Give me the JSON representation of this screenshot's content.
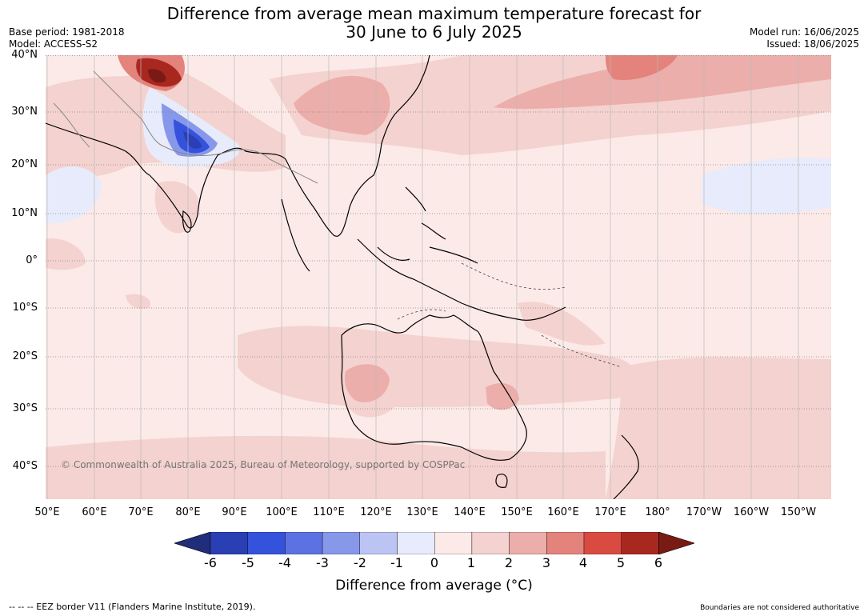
{
  "title": {
    "line1": "Difference from average mean maximum temperature forecast for",
    "line2": "30 June to 6 July 2025"
  },
  "meta": {
    "base_period": "Base period: 1981-2018",
    "model": "Model: ACCESS-S2",
    "model_run": "Model run: 16/06/2025",
    "issued": "Issued: 18/06/2025"
  },
  "map": {
    "lat_labels": [
      "40°N",
      "30°N",
      "20°N",
      "10°N",
      "0°",
      "10°S",
      "20°S",
      "30°S",
      "40°S"
    ],
    "lon_labels": [
      "50°E",
      "60°E",
      "70°E",
      "80°E",
      "90°E",
      "100°E",
      "110°E",
      "120°E",
      "130°E",
      "140°E",
      "150°E",
      "160°E",
      "170°E",
      "180°",
      "170°W",
      "160°W",
      "150°W"
    ],
    "copyright": "© Commonwealth of Australia 2025, Bureau of Meteorology, supported by COSPPac"
  },
  "colorbar": {
    "ticks": [
      "-6",
      "-5",
      "-4",
      "-3",
      "-2",
      "-1",
      "0",
      "1",
      "2",
      "3",
      "4",
      "5",
      "6"
    ],
    "colors": [
      "#1f2d7a",
      "#2a3fb4",
      "#3552dc",
      "#5c72e2",
      "#8797ea",
      "#bcc4f4",
      "#e8ebfb",
      "#fbeae8",
      "#f4d2cf",
      "#ecaeaa",
      "#e4827c",
      "#d94a40",
      "#a82820",
      "#7a1a14"
    ],
    "label": "Difference from average (°C)"
  },
  "footer": {
    "left": "--  --  -- EEZ border V11 (Flanders Marine Institute, 2019).",
    "right": "Boundaries are not considered authoritative"
  }
}
